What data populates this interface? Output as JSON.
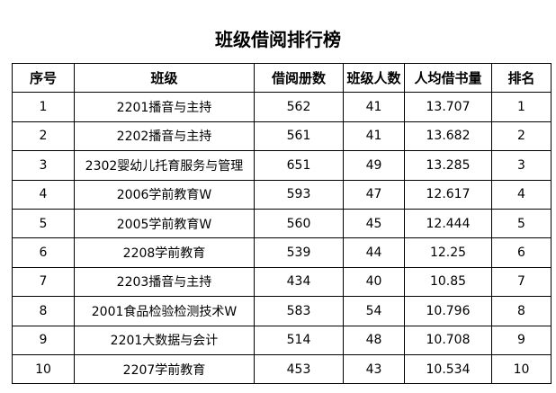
{
  "title": "班级借阅排行榜",
  "table": {
    "headers": [
      "序号",
      "班级",
      "借阅册数",
      "班级人数",
      "人均借书量",
      "排名"
    ],
    "rows": [
      [
        "1",
        "2201播音与主持",
        "562",
        "41",
        "13.707",
        "1"
      ],
      [
        "2",
        "2202播音与主持",
        "561",
        "41",
        "13.682",
        "2"
      ],
      [
        "3",
        "2302婴幼儿托育服务与管理",
        "651",
        "49",
        "13.285",
        "3"
      ],
      [
        "4",
        "2006学前教育W",
        "593",
        "47",
        "12.617",
        "4"
      ],
      [
        "5",
        "2005学前教育W",
        "560",
        "45",
        "12.444",
        "5"
      ],
      [
        "6",
        "2208学前教育",
        "539",
        "44",
        "12.25",
        "6"
      ],
      [
        "7",
        "2203播音与主持",
        "434",
        "40",
        "10.85",
        "7"
      ],
      [
        "8",
        "2001食品检验检测技术W",
        "583",
        "54",
        "10.796",
        "8"
      ],
      [
        "9",
        "2201大数据与会计",
        "514",
        "48",
        "10.708",
        "9"
      ],
      [
        "10",
        "2207学前教育",
        "453",
        "43",
        "10.534",
        "10"
      ]
    ]
  }
}
